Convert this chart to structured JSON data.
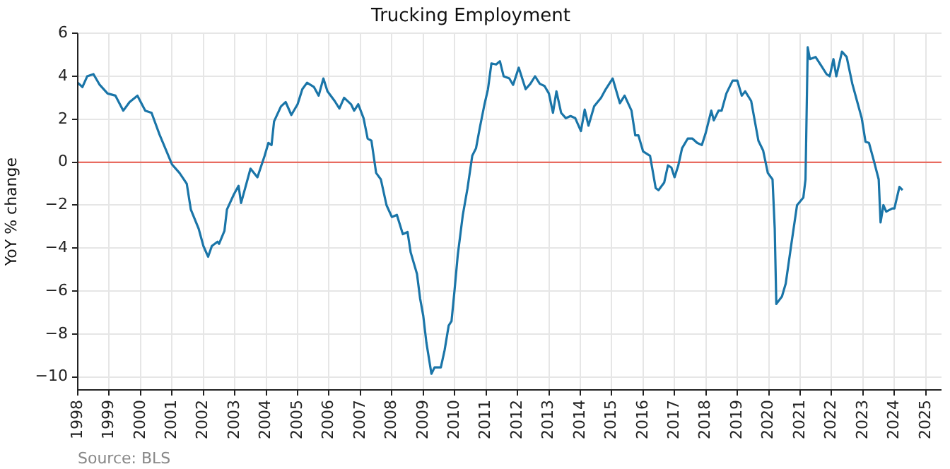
{
  "chart_data": {
    "type": "line",
    "title": "Trucking Employment",
    "ylabel": "YoY % change",
    "annotations": [
      "Source: BLS"
    ],
    "x": [
      1998.0,
      1998.15,
      1998.3,
      1998.5,
      1998.7,
      1998.95,
      1999.2,
      1999.45,
      1999.65,
      1999.9,
      2000.15,
      2000.35,
      2000.6,
      2000.8,
      2001.0,
      2001.24,
      2001.47,
      2001.6,
      2001.85,
      2002.0,
      2002.15,
      2002.27,
      2002.45,
      2002.5,
      2002.67,
      2002.75,
      2002.97,
      2003.12,
      2003.2,
      2003.5,
      2003.72,
      2003.95,
      2004.07,
      2004.17,
      2004.25,
      2004.47,
      2004.62,
      2004.8,
      2005.0,
      2005.15,
      2005.3,
      2005.52,
      2005.67,
      2005.82,
      2005.95,
      2006.18,
      2006.33,
      2006.48,
      2006.7,
      2006.8,
      2006.93,
      2007.1,
      2007.23,
      2007.35,
      2007.5,
      2007.65,
      2007.83,
      2008.0,
      2008.16,
      2008.35,
      2008.5,
      2008.6,
      2008.8,
      2008.9,
      2009.0,
      2009.1,
      2009.26,
      2009.36,
      2009.56,
      2009.68,
      2009.81,
      2009.9,
      2010.0,
      2010.1,
      2010.26,
      2010.41,
      2010.56,
      2010.68,
      2010.8,
      2010.95,
      2011.06,
      2011.17,
      2011.32,
      2011.44,
      2011.56,
      2011.74,
      2011.86,
      2012.04,
      2012.26,
      2012.41,
      2012.56,
      2012.71,
      2012.86,
      2013.0,
      2013.13,
      2013.24,
      2013.39,
      2013.54,
      2013.69,
      2013.84,
      2014.02,
      2014.14,
      2014.26,
      2014.44,
      2014.66,
      2014.81,
      2015.03,
      2015.26,
      2015.41,
      2015.63,
      2015.75,
      2015.85,
      2016.0,
      2016.22,
      2016.4,
      2016.49,
      2016.67,
      2016.79,
      2016.9,
      2017.0,
      2017.12,
      2017.24,
      2017.42,
      2017.57,
      2017.72,
      2017.87,
      2017.99,
      2018.17,
      2018.25,
      2018.4,
      2018.5,
      2018.65,
      2018.85,
      2019.0,
      2019.14,
      2019.25,
      2019.44,
      2019.67,
      2019.82,
      2019.97,
      2020.12,
      2020.19,
      2020.24,
      2020.42,
      2020.54,
      2020.72,
      2020.9,
      2021.1,
      2021.17,
      2021.24,
      2021.31,
      2021.49,
      2021.69,
      2021.84,
      2021.94,
      2022.06,
      2022.15,
      2022.33,
      2022.48,
      2022.66,
      2022.81,
      2022.96,
      2023.08,
      2023.19,
      2023.34,
      2023.5,
      2023.56,
      2023.65,
      2023.74,
      2023.93,
      2024.0,
      2024.16,
      2024.26
    ],
    "series": [
      {
        "color": "#1a75a8",
        "values": [
          3.7,
          3.5,
          4.0,
          4.1,
          3.6,
          3.2,
          3.1,
          2.4,
          2.8,
          3.1,
          2.4,
          2.3,
          1.3,
          0.6,
          -0.1,
          -0.5,
          -1.0,
          -2.2,
          -3.1,
          -3.9,
          -4.4,
          -3.9,
          -3.7,
          -3.8,
          -3.2,
          -2.2,
          -1.5,
          -1.1,
          -1.9,
          -0.3,
          -0.7,
          0.3,
          0.9,
          0.8,
          1.9,
          2.6,
          2.8,
          2.2,
          2.7,
          3.4,
          3.7,
          3.5,
          3.1,
          3.9,
          3.3,
          2.85,
          2.5,
          3.0,
          2.7,
          2.4,
          2.7,
          2.05,
          1.1,
          1.0,
          -0.5,
          -0.8,
          -2.0,
          -2.55,
          -2.45,
          -3.35,
          -3.25,
          -4.2,
          -5.2,
          -6.35,
          -7.15,
          -8.4,
          -9.85,
          -9.55,
          -9.55,
          -8.75,
          -7.6,
          -7.4,
          -5.9,
          -4.3,
          -2.45,
          -1.2,
          0.3,
          0.65,
          1.6,
          2.7,
          3.4,
          4.6,
          4.55,
          4.7,
          4.0,
          3.9,
          3.6,
          4.4,
          3.4,
          3.65,
          4.0,
          3.65,
          3.55,
          3.2,
          2.3,
          3.3,
          2.3,
          2.05,
          2.15,
          2.05,
          1.45,
          2.45,
          1.7,
          2.6,
          3.0,
          3.4,
          3.9,
          2.75,
          3.1,
          2.4,
          1.25,
          1.25,
          0.5,
          0.3,
          -1.2,
          -1.3,
          -0.95,
          -0.15,
          -0.25,
          -0.7,
          -0.15,
          0.65,
          1.1,
          1.1,
          0.9,
          0.8,
          1.35,
          2.4,
          1.95,
          2.4,
          2.4,
          3.2,
          3.8,
          3.8,
          3.1,
          3.3,
          2.85,
          1.0,
          0.55,
          -0.5,
          -0.8,
          -3.1,
          -6.6,
          -6.25,
          -5.65,
          -3.8,
          -2.0,
          -1.65,
          -0.8,
          5.35,
          4.8,
          4.9,
          4.45,
          4.1,
          4.0,
          4.8,
          4.0,
          5.15,
          4.9,
          3.65,
          2.85,
          2.05,
          0.95,
          0.9,
          0.1,
          -0.8,
          -2.8,
          -2.0,
          -2.3,
          -2.15,
          -2.15,
          -1.15,
          -1.3
        ]
      }
    ],
    "xlim": [
      1998,
      2025.5
    ],
    "xticks": [
      1998,
      1999,
      2000,
      2001,
      2002,
      2003,
      2004,
      2005,
      2006,
      2007,
      2008,
      2009,
      2010,
      2011,
      2012,
      2013,
      2014,
      2015,
      2016,
      2017,
      2018,
      2019,
      2020,
      2021,
      2022,
      2023,
      2024,
      2025
    ],
    "ylim": [
      -10.6,
      6
    ],
    "yticks": [
      -10,
      -8,
      -6,
      -4,
      -2,
      0,
      2,
      4,
      6
    ],
    "ref_lines": [
      {
        "axis": "y",
        "value": 0,
        "color": "#e8574a"
      }
    ],
    "grid": true,
    "legend": false,
    "marker": "none",
    "line_style": "solid"
  }
}
